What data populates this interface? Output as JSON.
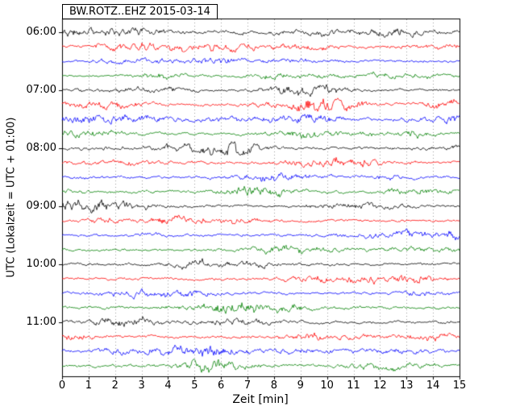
{
  "header": {
    "title": "BW.ROTZ..EHZ 2015-03-14"
  },
  "axes": {
    "xlabel": "Zeit  [min]",
    "ylabel": "UTC (Lokalzeit = UTC + 01:00)"
  },
  "chart_data": {
    "type": "line",
    "subtype": "helicorder-dayplot-seismogram",
    "title": "BW.ROTZ..EHZ 2015-03-14",
    "station_id": "BW.ROTZ..EHZ",
    "date": "2015-03-14",
    "xlabel": "Zeit  [min]",
    "ylabel": "UTC (Lokalzeit = UTC + 01:00)",
    "xlim": [
      0,
      15
    ],
    "xticks": [
      0,
      1,
      2,
      3,
      4,
      5,
      6,
      7,
      8,
      9,
      10,
      11,
      12,
      13,
      14,
      15
    ],
    "minutes_per_row": 15,
    "rows": 24,
    "ytick_labels": [
      "06:00",
      "07:00",
      "08:00",
      "09:00",
      "10:00",
      "11:00"
    ],
    "ytick_row_index": [
      0,
      4,
      8,
      12,
      16,
      20
    ],
    "colors": {
      "black": "#000000",
      "red": "#ff0000",
      "blue": "#0000ff",
      "green": "#008000"
    },
    "color_cycle": [
      "black",
      "red",
      "blue",
      "green"
    ],
    "grid": {
      "vertical": true,
      "style": "dashed",
      "per_minute": true
    },
    "traces": [
      {
        "start": "06:00",
        "color": "black"
      },
      {
        "start": "06:15",
        "color": "red"
      },
      {
        "start": "06:30",
        "color": "blue"
      },
      {
        "start": "06:45",
        "color": "green"
      },
      {
        "start": "07:00",
        "color": "black"
      },
      {
        "start": "07:15",
        "color": "red"
      },
      {
        "start": "07:30",
        "color": "blue"
      },
      {
        "start": "07:45",
        "color": "green"
      },
      {
        "start": "08:00",
        "color": "black"
      },
      {
        "start": "08:15",
        "color": "red"
      },
      {
        "start": "08:30",
        "color": "blue"
      },
      {
        "start": "08:45",
        "color": "green"
      },
      {
        "start": "09:00",
        "color": "black"
      },
      {
        "start": "09:15",
        "color": "red"
      },
      {
        "start": "09:30",
        "color": "blue"
      },
      {
        "start": "09:45",
        "color": "green"
      },
      {
        "start": "10:00",
        "color": "black"
      },
      {
        "start": "10:15",
        "color": "red"
      },
      {
        "start": "10:30",
        "color": "blue"
      },
      {
        "start": "10:45",
        "color": "green"
      },
      {
        "start": "11:00",
        "color": "black"
      },
      {
        "start": "11:15",
        "color": "red"
      },
      {
        "start": "11:30",
        "color": "blue"
      },
      {
        "start": "11:45",
        "color": "green"
      }
    ],
    "content_note": "continuous ambient seismic noise on every trace; no labeled events or picks visible"
  }
}
